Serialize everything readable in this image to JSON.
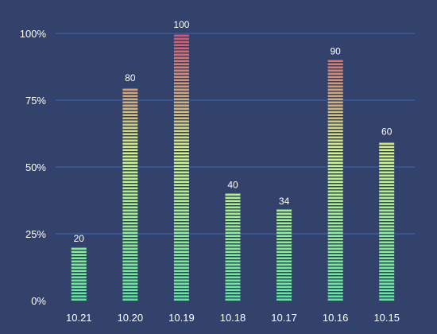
{
  "chart_data": {
    "type": "bar",
    "title": "",
    "xlabel": "",
    "ylabel": "",
    "categories": [
      "10.21",
      "10.20",
      "10.19",
      "10.18",
      "10.17",
      "10.16",
      "10.15"
    ],
    "values": [
      20,
      80,
      100,
      40,
      34,
      90,
      60
    ],
    "data_labels": [
      "20",
      "80",
      "100",
      "40",
      "34",
      "90",
      "60"
    ],
    "ylim": [
      0,
      100
    ],
    "y_ticks": [
      0,
      25,
      50,
      75,
      100
    ],
    "y_tick_labels": [
      "0%",
      "25%",
      "50%",
      "75%",
      "100%"
    ],
    "grid": true,
    "legend": "none",
    "bar_style": "segmented gradient",
    "colors": {
      "background": "#32426b",
      "gridline": "#3a65b8",
      "text": "#ffffff",
      "gradient_bottom": "#4af58a",
      "gradient_middle": "#d6fb58",
      "gradient_top": "#f0485c"
    }
  }
}
